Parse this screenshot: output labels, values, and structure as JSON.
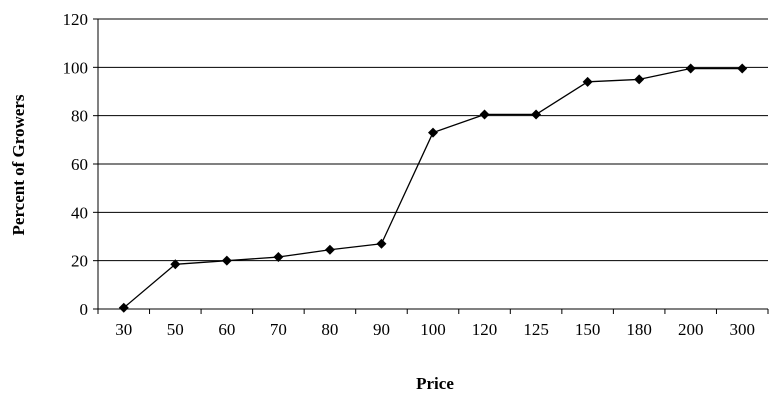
{
  "chart_data": {
    "type": "line",
    "title": "",
    "xlabel": "Price",
    "ylabel": "Percent of Growers",
    "categories": [
      "30",
      "50",
      "60",
      "70",
      "80",
      "90",
      "100",
      "120",
      "125",
      "150",
      "180",
      "200",
      "300"
    ],
    "series": [
      {
        "values": [
          0.5,
          18.5,
          20,
          21.5,
          24.5,
          27,
          73,
          80.5,
          80.5,
          94,
          95,
          99.5,
          99.5
        ]
      }
    ],
    "ylim": [
      0,
      120
    ],
    "yticks": [
      0,
      20,
      40,
      60,
      80,
      100,
      120
    ],
    "grid": "horizontal",
    "legend": "none",
    "colors": {
      "line": "#000000",
      "marker": "#000000",
      "grid": "#000000",
      "axis": "#000000",
      "background": "#ffffff"
    }
  }
}
